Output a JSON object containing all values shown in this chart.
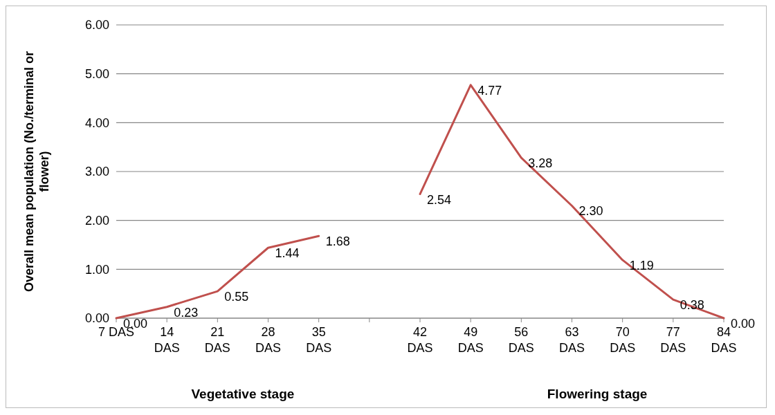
{
  "chart_data": {
    "type": "line",
    "ylabel": "Overall mean population (No./terminal or flower)",
    "categories": [
      "7 DAS",
      "14 DAS",
      "21 DAS",
      "28 DAS",
      "35 DAS",
      null,
      "42 DAS",
      "49 DAS",
      "56 DAS",
      "63 DAS",
      "70 DAS",
      "77 DAS",
      "84 DAS"
    ],
    "series": [
      {
        "color": "#c0504d",
        "values": [
          0,
          0.23,
          0.55,
          1.44,
          1.68,
          null,
          2.54,
          4.77,
          3.28,
          2.3,
          1.19,
          0.38,
          0
        ],
        "value_labels": [
          "0.00",
          "0.23",
          "0.55",
          "1.44",
          "1.68",
          null,
          "2.54",
          "4.77",
          "3.28",
          "2.30",
          "1.19",
          "0.38",
          "0.00"
        ]
      }
    ],
    "ylim": [
      0,
      6
    ],
    "yticks": [
      {
        "value": 0,
        "label": "0.00"
      },
      {
        "value": 1,
        "label": "1.00"
      },
      {
        "value": 2,
        "label": "2.00"
      },
      {
        "value": 3,
        "label": "3.00"
      },
      {
        "value": 4,
        "label": "4.00"
      },
      {
        "value": 5,
        "label": "5.00"
      },
      {
        "value": 6,
        "label": "6.00"
      }
    ],
    "grid": "y",
    "marker": "none",
    "line_style": "solid",
    "annotations": [
      "Vegetative stage",
      "Flowering stage"
    ]
  }
}
